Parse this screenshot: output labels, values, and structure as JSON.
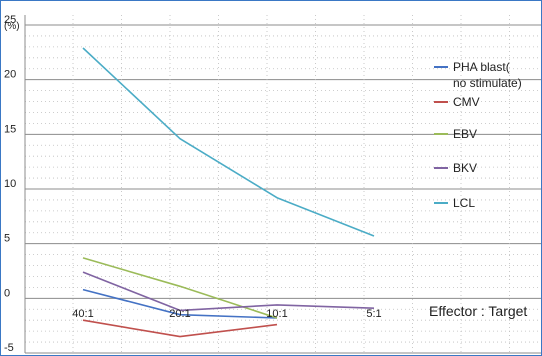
{
  "chart_data": {
    "type": "line",
    "unit_label": "(%)",
    "x_title": "Effector : Target",
    "categories": [
      "40:1",
      "20:1",
      "10:1",
      "5:1"
    ],
    "ylim": [
      -5,
      25
    ],
    "yticks": [
      "-5",
      "0",
      "5",
      "10",
      "15",
      "20",
      "25"
    ],
    "grid": true,
    "legend_position": "right",
    "series": [
      {
        "name": "PHA blast(no stimulate)",
        "color": "#4472c4",
        "values": [
          0.8,
          -1.5,
          -1.8,
          null
        ]
      },
      {
        "name": "CMV",
        "color": "#c0504d",
        "values": [
          -2.0,
          -3.5,
          -2.4,
          null
        ]
      },
      {
        "name": "EBV",
        "color": "#9bbb59",
        "values": [
          3.7,
          1.1,
          -1.8,
          null
        ]
      },
      {
        "name": "BKV",
        "color": "#8064a2",
        "values": [
          2.4,
          -1.1,
          -0.6,
          -0.9
        ]
      },
      {
        "name": "LCL",
        "color": "#4bacc6",
        "values": [
          22.9,
          14.6,
          9.2,
          5.7
        ]
      }
    ]
  }
}
